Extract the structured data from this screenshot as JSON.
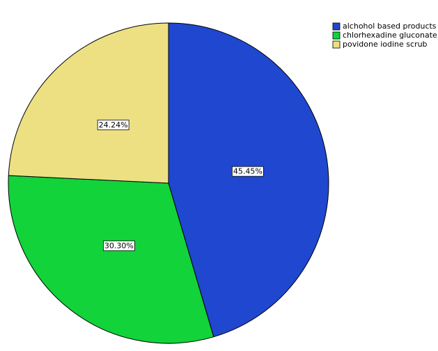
{
  "chart_data": {
    "type": "pie",
    "categories": [
      "alchohol based products",
      "chlorhexadine gluconate",
      "povidone iodine scrub"
    ],
    "values": [
      45.45,
      30.3,
      24.24
    ],
    "value_labels": [
      "45.45%",
      "30.30%",
      "24.24%"
    ],
    "colors": [
      "#1f47d0",
      "#12d33a",
      "#ece083"
    ],
    "legend": "top-right"
  }
}
